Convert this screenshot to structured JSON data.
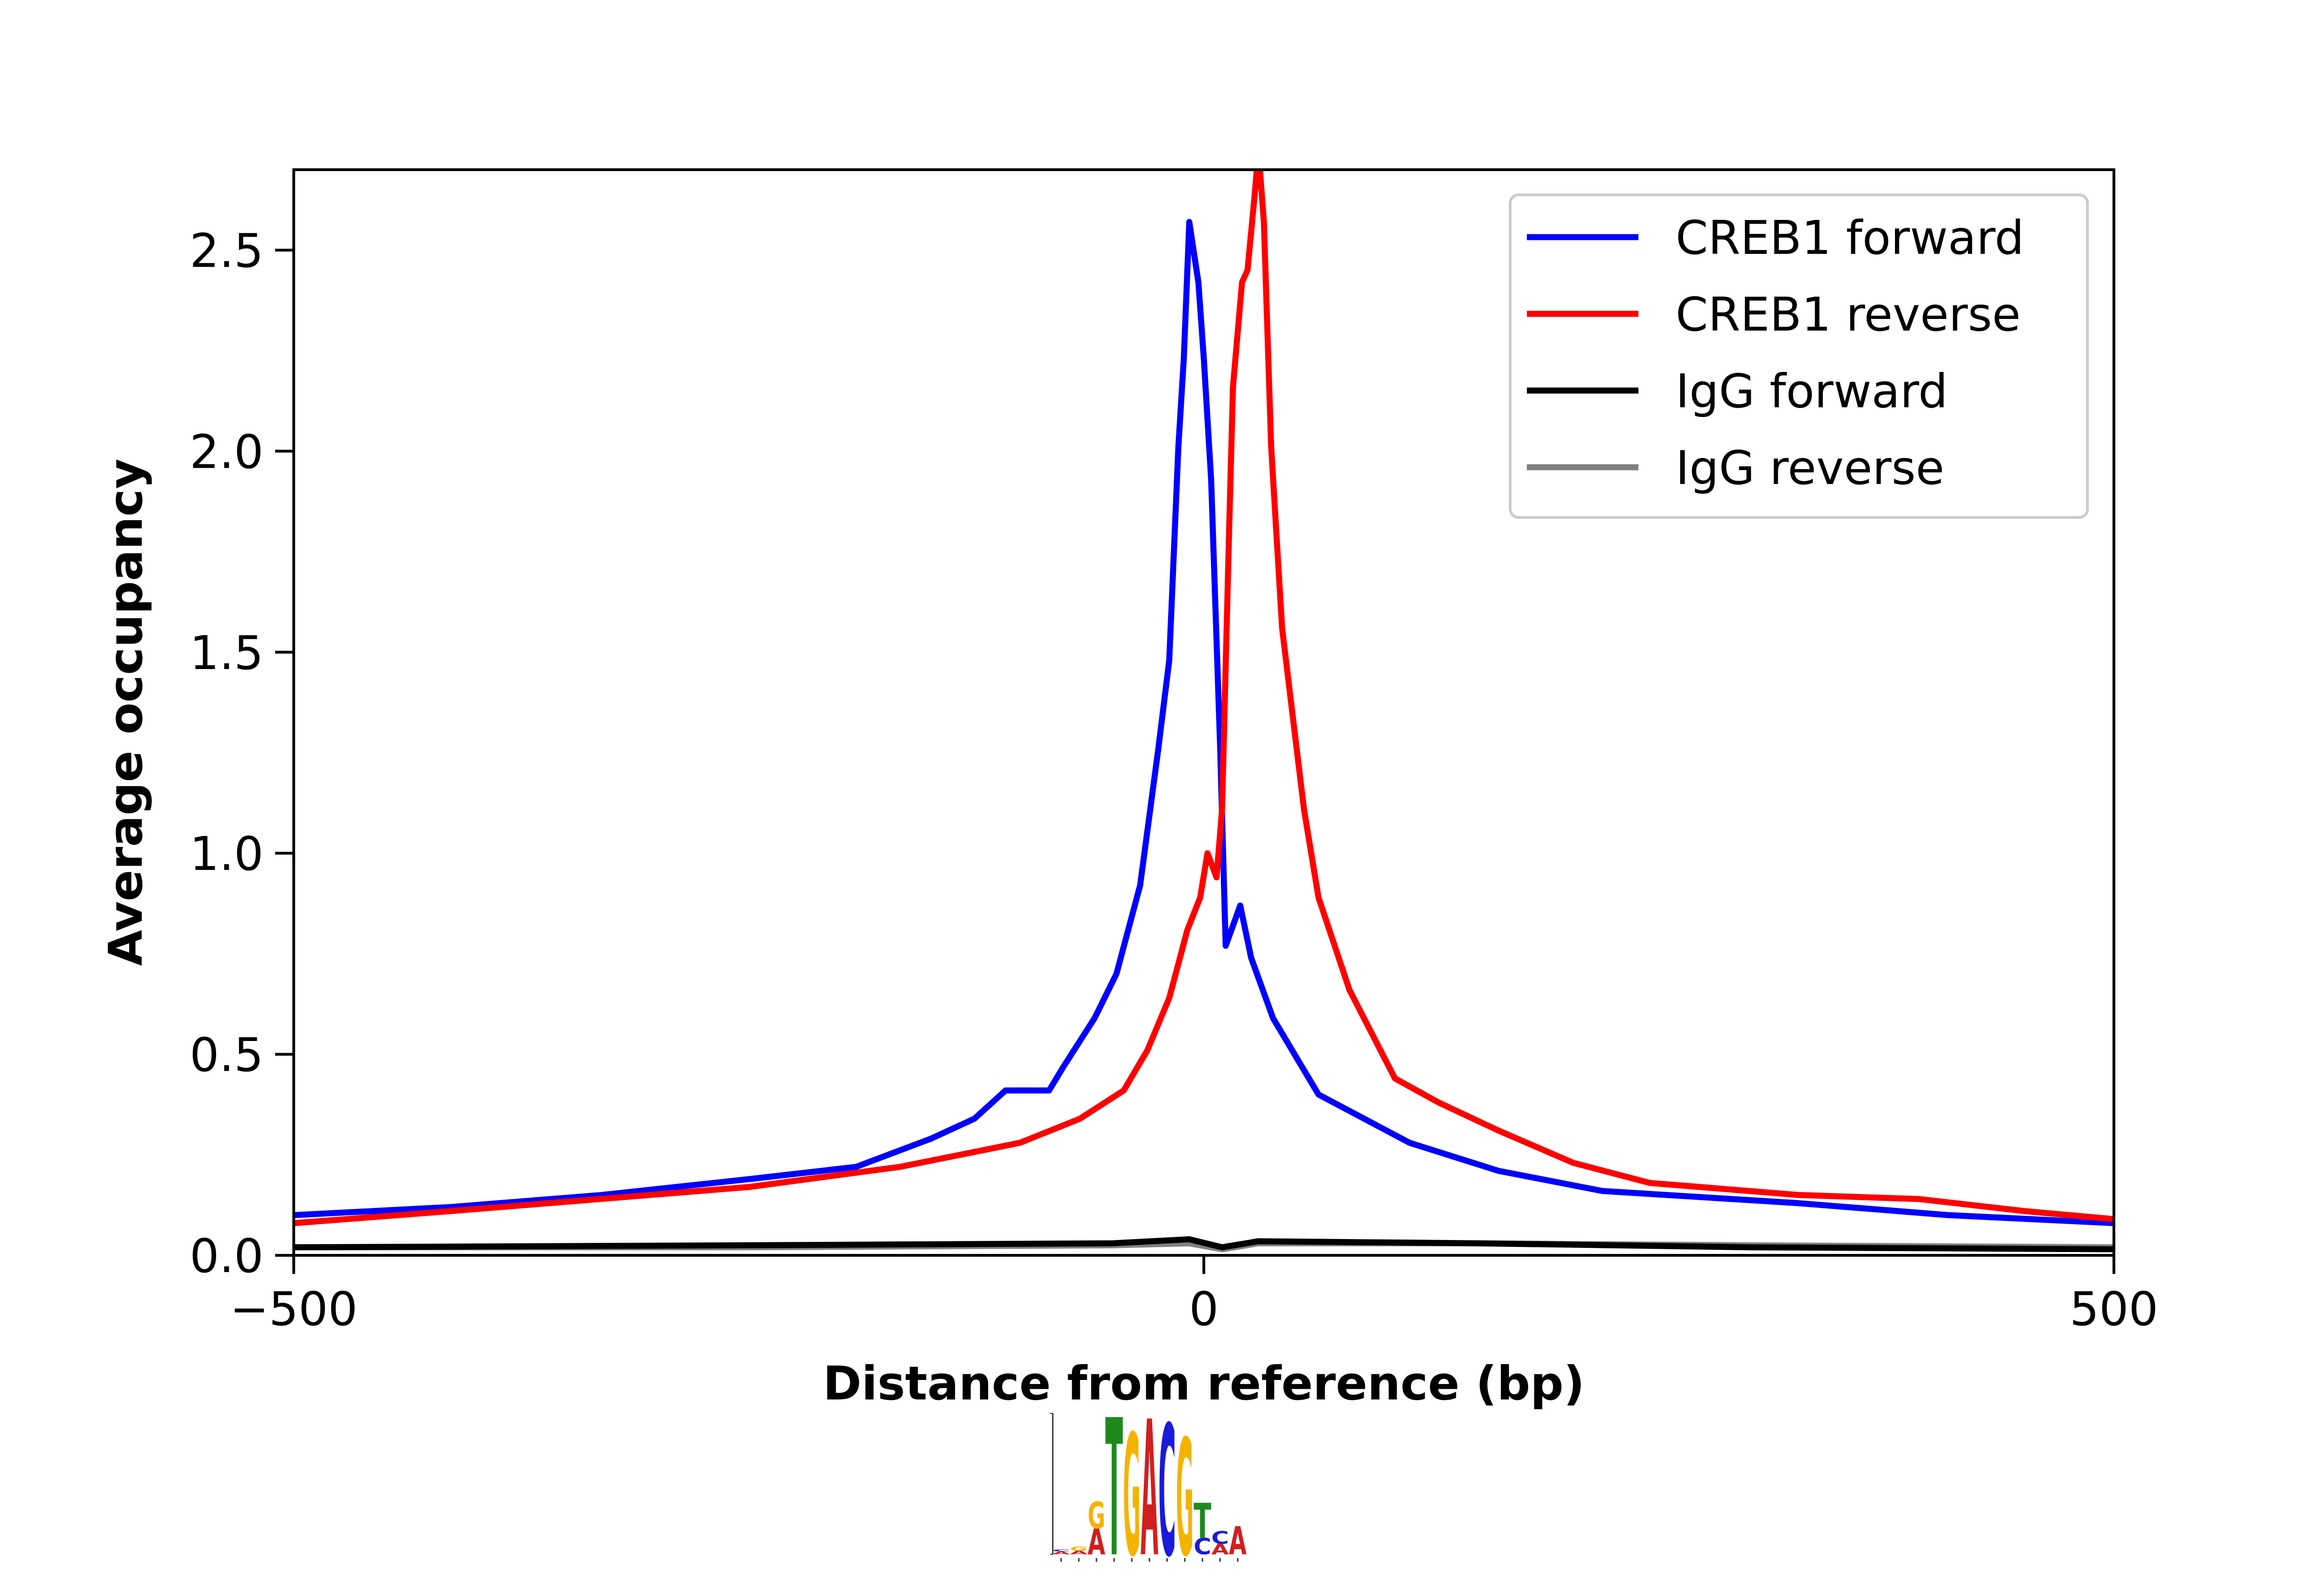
{
  "chart_data": {
    "type": "line",
    "title": "",
    "xlabel": "Distance from reference (bp)",
    "ylabel": "Average occupancy",
    "xlim": [
      -500,
      500
    ],
    "ylim": [
      0,
      2.7
    ],
    "xticks": [
      -500,
      0,
      500
    ],
    "xtick_labels": [
      "−500",
      "0",
      "500"
    ],
    "yticks": [
      0,
      0.5,
      1,
      1.5,
      2,
      2.5
    ],
    "ytick_labels": [
      "0.0",
      "0.5",
      "1.0",
      "1.5",
      "2.0",
      "2.5"
    ],
    "grid": false,
    "legend_position": "top-right",
    "series": [
      {
        "name": "CREB1 forward",
        "color": "#0000ff",
        "x": [
          -500,
          -414,
          -331,
          -249,
          -191,
          -150,
          -126,
          -109,
          -85,
          -77,
          -60,
          -48,
          -35,
          -25,
          -19,
          -14,
          -11,
          -8,
          -3,
          0,
          4,
          9,
          12,
          16,
          20,
          26,
          38,
          63,
          88,
          113,
          162,
          219,
          326,
          409,
          500
        ],
        "y": [
          0.1,
          0.12,
          0.15,
          0.19,
          0.22,
          0.29,
          0.34,
          0.41,
          0.41,
          0.47,
          0.59,
          0.7,
          0.92,
          1.26,
          1.48,
          2.01,
          2.23,
          2.57,
          2.42,
          2.23,
          1.93,
          1.26,
          0.77,
          0.82,
          0.87,
          0.74,
          0.59,
          0.4,
          0.34,
          0.28,
          0.21,
          0.16,
          0.13,
          0.1,
          0.08
        ]
      },
      {
        "name": "CREB1 reverse",
        "color": "#ff0000",
        "x": [
          -500,
          -414,
          -332,
          -250,
          -167,
          -101,
          -68,
          -44,
          -31,
          -19,
          -9,
          -2,
          2,
          7,
          10,
          14,
          16,
          21,
          24,
          28,
          30,
          33,
          37,
          43,
          55,
          63,
          80,
          105,
          129,
          162,
          203,
          245,
          327,
          393,
          451,
          500
        ],
        "y": [
          0.08,
          0.11,
          0.14,
          0.17,
          0.22,
          0.28,
          0.34,
          0.41,
          0.51,
          0.64,
          0.81,
          0.89,
          1.0,
          0.94,
          1.11,
          1.82,
          2.16,
          2.42,
          2.45,
          2.64,
          2.75,
          2.57,
          2.01,
          1.56,
          1.11,
          0.89,
          0.66,
          0.44,
          0.38,
          0.31,
          0.23,
          0.18,
          0.15,
          0.14,
          0.11,
          0.09
        ]
      },
      {
        "name": "IgG forward",
        "color": "#000000",
        "x": [
          -500,
          -250,
          -50,
          -8,
          10,
          30,
          150,
          300,
          500
        ],
        "y": [
          0.02,
          0.025,
          0.03,
          0.04,
          0.02,
          0.035,
          0.03,
          0.02,
          0.015
        ]
      },
      {
        "name": "IgG reverse",
        "color": "#808080",
        "x": [
          -500,
          -250,
          -50,
          -8,
          10,
          30,
          150,
          300,
          500
        ],
        "y": [
          0.02,
          0.02,
          0.025,
          0.03,
          0.015,
          0.03,
          0.03,
          0.025,
          0.02
        ]
      }
    ]
  },
  "motif_logo": {
    "colors": {
      "A": "#d11f1f",
      "C": "#1a1adb",
      "G": "#f5b300",
      "T": "#1e8a1e"
    },
    "max_bits": 2,
    "columns": [
      [
        [
          "A",
          0.04
        ],
        [
          "C",
          0.03
        ]
      ],
      [
        [
          "A",
          0.05
        ],
        [
          "G",
          0.06
        ]
      ],
      [
        [
          "A",
          0.37
        ],
        [
          "G",
          0.38
        ]
      ],
      [
        [
          "T",
          1.95
        ]
      ],
      [
        [
          "G",
          1.73
        ]
      ],
      [
        [
          "A",
          1.93
        ]
      ],
      [
        [
          "C",
          1.86
        ]
      ],
      [
        [
          "G",
          1.66
        ]
      ],
      [
        [
          "C",
          0.23
        ],
        [
          "T",
          0.5
        ]
      ],
      [
        [
          "A",
          0.15
        ],
        [
          "C",
          0.18
        ]
      ],
      [
        [
          "A",
          0.4
        ]
      ]
    ]
  }
}
